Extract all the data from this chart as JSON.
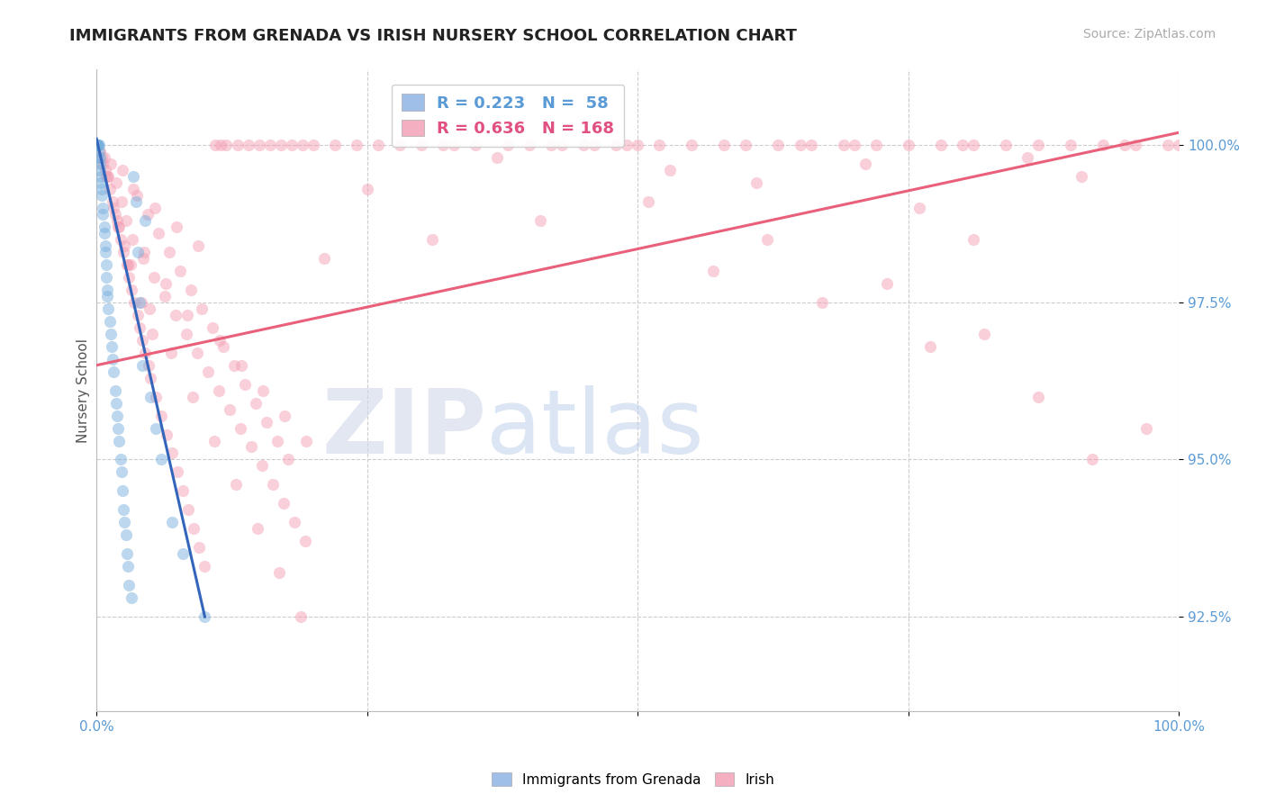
{
  "title": "IMMIGRANTS FROM GRENADA VS IRISH NURSERY SCHOOL CORRELATION CHART",
  "source": "Source: ZipAtlas.com",
  "ylabel": "Nursery School",
  "xlim": [
    0.0,
    100.0
  ],
  "ylim": [
    91.0,
    101.2
  ],
  "yticks": [
    92.5,
    95.0,
    97.5,
    100.0
  ],
  "ytick_labels": [
    "92.5%",
    "95.0%",
    "97.5%",
    "100.0%"
  ],
  "watermark_zip": "ZIP",
  "watermark_atlas": "atlas",
  "bg_color": "#ffffff",
  "blue_color": "#7ab0de",
  "pink_color": "#f4a0b5",
  "blue_line_color": "#3366bb",
  "pink_line_color": "#e8607a",
  "grid_color": "#cccccc",
  "title_color": "#222222",
  "title_fontsize": 13,
  "source_fontsize": 10,
  "scatter_alpha": 0.5,
  "scatter_size": 90,
  "blue_scatter_x": [
    0.05,
    0.05,
    0.1,
    0.1,
    0.15,
    0.15,
    0.2,
    0.2,
    0.3,
    0.3,
    0.3,
    0.4,
    0.4,
    0.5,
    0.5,
    0.6,
    0.6,
    0.7,
    0.7,
    0.8,
    0.8,
    0.9,
    0.9,
    1.0,
    1.0,
    1.1,
    1.2,
    1.3,
    1.4,
    1.5,
    1.6,
    1.7,
    1.8,
    1.9,
    2.0,
    2.1,
    2.2,
    2.3,
    2.4,
    2.5,
    2.6,
    2.7,
    2.8,
    2.9,
    3.0,
    3.2,
    3.4,
    3.6,
    3.8,
    4.0,
    4.2,
    4.5,
    5.0,
    5.5,
    6.0,
    7.0,
    8.0,
    10.0
  ],
  "blue_scatter_y": [
    100.0,
    100.0,
    100.0,
    100.0,
    100.0,
    99.8,
    100.0,
    99.9,
    99.8,
    99.7,
    99.6,
    99.5,
    99.4,
    99.3,
    99.2,
    99.0,
    98.9,
    98.7,
    98.6,
    98.4,
    98.3,
    98.1,
    97.9,
    97.7,
    97.6,
    97.4,
    97.2,
    97.0,
    96.8,
    96.6,
    96.4,
    96.1,
    95.9,
    95.7,
    95.5,
    95.3,
    95.0,
    94.8,
    94.5,
    94.2,
    94.0,
    93.8,
    93.5,
    93.3,
    93.0,
    92.8,
    99.5,
    99.1,
    98.3,
    97.5,
    96.5,
    98.8,
    96.0,
    95.5,
    95.0,
    94.0,
    93.5,
    92.5
  ],
  "blue_line_x": [
    0.0,
    10.0
  ],
  "blue_line_y": [
    100.1,
    92.5
  ],
  "pink_scatter_x": [
    0.5,
    0.8,
    1.0,
    1.2,
    1.5,
    1.7,
    2.0,
    2.2,
    2.5,
    2.8,
    3.0,
    3.2,
    3.5,
    3.8,
    4.0,
    4.2,
    4.5,
    4.8,
    5.0,
    5.5,
    6.0,
    6.5,
    7.0,
    7.5,
    8.0,
    8.5,
    9.0,
    9.5,
    10.0,
    11.0,
    12.0,
    13.0,
    14.0,
    15.0,
    16.0,
    17.0,
    18.0,
    19.0,
    20.0,
    22.0,
    24.0,
    26.0,
    28.0,
    30.0,
    32.0,
    35.0,
    38.0,
    40.0,
    43.0,
    46.0,
    49.0,
    52.0,
    55.0,
    58.0,
    60.0,
    63.0,
    66.0,
    69.0,
    72.0,
    75.0,
    78.0,
    81.0,
    84.0,
    87.0,
    90.0,
    93.0,
    96.0,
    99.0,
    100.0,
    1.3,
    1.8,
    2.3,
    2.7,
    3.3,
    4.3,
    5.3,
    6.3,
    7.3,
    8.3,
    9.3,
    10.3,
    11.3,
    12.3,
    13.3,
    14.3,
    15.3,
    16.3,
    17.3,
    18.3,
    19.3,
    3.7,
    4.7,
    5.7,
    6.7,
    7.7,
    8.7,
    9.7,
    10.7,
    11.7,
    12.7,
    13.7,
    14.7,
    15.7,
    16.7,
    17.7,
    0.3,
    0.6,
    0.9,
    1.6,
    2.1,
    2.6,
    3.1,
    4.1,
    5.1,
    33.0,
    50.0,
    65.0,
    80.0,
    95.0,
    45.0,
    70.0,
    42.0,
    48.0,
    37.0,
    53.0,
    62.0,
    73.0,
    82.0,
    92.0,
    25.0,
    57.0,
    67.0,
    77.0,
    87.0,
    97.0,
    86.0,
    91.0,
    76.0,
    81.0,
    71.0,
    61.0,
    51.0,
    41.0,
    31.0,
    21.0,
    11.5,
    4.4,
    6.4,
    8.4,
    11.4,
    13.4,
    15.4,
    17.4,
    19.4,
    2.4,
    3.4,
    5.4,
    7.4,
    9.4,
    0.7,
    1.1,
    1.9,
    2.9,
    4.9,
    6.9,
    8.9,
    10.9,
    12.9,
    14.9,
    16.9,
    18.9
  ],
  "pink_scatter_y": [
    99.8,
    99.6,
    99.5,
    99.3,
    99.1,
    98.9,
    98.7,
    98.5,
    98.3,
    98.1,
    97.9,
    97.7,
    97.5,
    97.3,
    97.1,
    96.9,
    96.7,
    96.5,
    96.3,
    96.0,
    95.7,
    95.4,
    95.1,
    94.8,
    94.5,
    94.2,
    93.9,
    93.6,
    93.3,
    100.0,
    100.0,
    100.0,
    100.0,
    100.0,
    100.0,
    100.0,
    100.0,
    100.0,
    100.0,
    100.0,
    100.0,
    100.0,
    100.0,
    100.0,
    100.0,
    100.0,
    100.0,
    100.0,
    100.0,
    100.0,
    100.0,
    100.0,
    100.0,
    100.0,
    100.0,
    100.0,
    100.0,
    100.0,
    100.0,
    100.0,
    100.0,
    100.0,
    100.0,
    100.0,
    100.0,
    100.0,
    100.0,
    100.0,
    100.0,
    99.7,
    99.4,
    99.1,
    98.8,
    98.5,
    98.2,
    97.9,
    97.6,
    97.3,
    97.0,
    96.7,
    96.4,
    96.1,
    95.8,
    95.5,
    95.2,
    94.9,
    94.6,
    94.3,
    94.0,
    93.7,
    99.2,
    98.9,
    98.6,
    98.3,
    98.0,
    97.7,
    97.4,
    97.1,
    96.8,
    96.5,
    96.2,
    95.9,
    95.6,
    95.3,
    95.0,
    99.9,
    99.7,
    99.5,
    99.0,
    98.7,
    98.4,
    98.1,
    97.5,
    97.0,
    100.0,
    100.0,
    100.0,
    100.0,
    100.0,
    100.0,
    100.0,
    100.0,
    100.0,
    99.8,
    99.6,
    98.5,
    97.8,
    97.0,
    95.0,
    99.3,
    98.0,
    97.5,
    96.8,
    96.0,
    95.5,
    99.8,
    99.5,
    99.0,
    98.5,
    99.7,
    99.4,
    99.1,
    98.8,
    98.5,
    98.2,
    100.0,
    98.3,
    97.8,
    97.3,
    96.9,
    96.5,
    96.1,
    95.7,
    95.3,
    99.6,
    99.3,
    99.0,
    98.7,
    98.4,
    99.8,
    99.5,
    98.8,
    98.1,
    97.4,
    96.7,
    96.0,
    95.3,
    94.6,
    93.9,
    93.2,
    92.5
  ],
  "pink_line_x": [
    0.0,
    100.0
  ],
  "pink_line_y": [
    96.5,
    100.2
  ]
}
